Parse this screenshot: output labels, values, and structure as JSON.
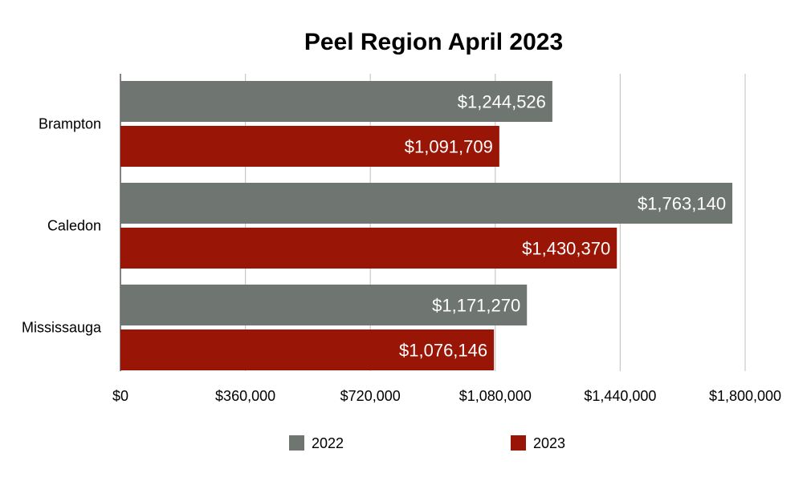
{
  "chart_data": {
    "type": "bar",
    "orientation": "horizontal",
    "title": "Peel Region April 2023",
    "categories": [
      "Brampton",
      "Caledon",
      "Mississauga"
    ],
    "series": [
      {
        "name": "2022",
        "color": "#6f7570",
        "values": [
          1244526,
          1763140,
          1171270
        ],
        "labels": [
          "$1,244,526",
          "$1,763,140",
          "$1,171,270"
        ]
      },
      {
        "name": "2023",
        "color": "#991506",
        "values": [
          1091709,
          1430370,
          1076146
        ],
        "labels": [
          "$1,091,709",
          "$1,430,370",
          "$1,076,146"
        ]
      }
    ],
    "x_ticks": [
      0,
      360000,
      720000,
      1080000,
      1440000,
      1800000
    ],
    "x_tick_labels": [
      "$0",
      "$360,000",
      "$720,000",
      "$1,080,000",
      "$1,440,000",
      "$1,800,000"
    ],
    "xlim": [
      0,
      1800000
    ],
    "grid": true,
    "legend_position": "bottom",
    "gridline_color": "#c8c8c8"
  }
}
